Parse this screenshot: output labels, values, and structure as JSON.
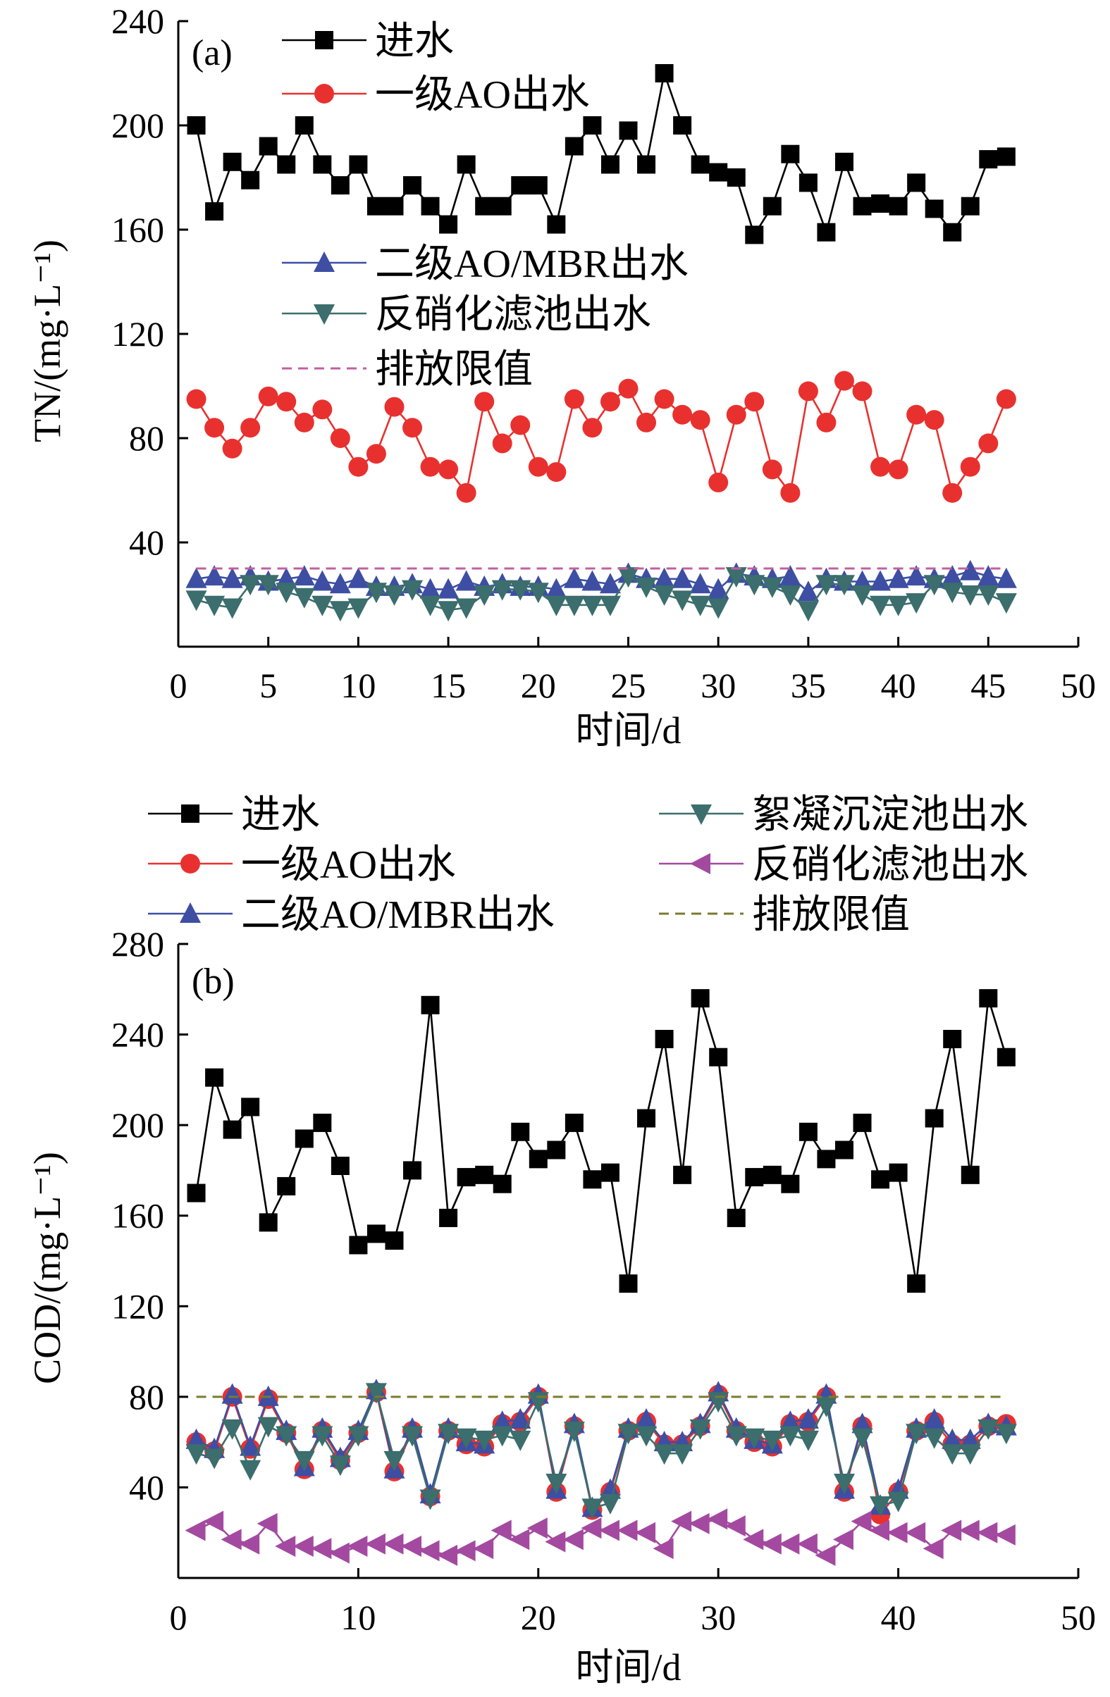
{
  "chart_data": [
    {
      "type": "line",
      "panel_label": "(a)",
      "xlabel": "时间/d",
      "ylabel": "TN/(mg·L⁻¹)",
      "xlim": [
        0,
        50
      ],
      "ylim": [
        0,
        240
      ],
      "x_ticks": [
        "0",
        "5",
        "10",
        "15",
        "20",
        "25",
        "30",
        "35",
        "40",
        "45",
        "50"
      ],
      "y_ticks": [
        "40",
        "80",
        "120",
        "160",
        "200",
        "240"
      ],
      "grid": false,
      "legend_position": "top-left (split: upper and middle)",
      "x": [
        1,
        2,
        3,
        4,
        5,
        6,
        7,
        8,
        9,
        10,
        11,
        12,
        13,
        14,
        15,
        16,
        17,
        18,
        19,
        20,
        21,
        22,
        23,
        24,
        25,
        26,
        27,
        28,
        29,
        30,
        31,
        32,
        33,
        34,
        35,
        36,
        37,
        38,
        39,
        40,
        41,
        42,
        43,
        44,
        45,
        46
      ],
      "series": [
        {
          "name": "进水",
          "color": "#000000",
          "marker": "square",
          "values": [
            200,
            167,
            186,
            179,
            192,
            185,
            200,
            185,
            177,
            185,
            169,
            169,
            177,
            169,
            162,
            185,
            169,
            169,
            177,
            177,
            162,
            192,
            200,
            185,
            198,
            185,
            220,
            200,
            185,
            182,
            180,
            158,
            169,
            189,
            178,
            159,
            186,
            169,
            170,
            169,
            178,
            168,
            159,
            169,
            187,
            188
          ]
        },
        {
          "name": "一级AO出水",
          "color": "#e8312f",
          "marker": "circle",
          "values": [
            95,
            84,
            76,
            84,
            96,
            94,
            86,
            91,
            80,
            69,
            74,
            92,
            84,
            69,
            68,
            59,
            94,
            78,
            85,
            69,
            67,
            95,
            84,
            94,
            99,
            86,
            95,
            89,
            87,
            63,
            89,
            94,
            68,
            59,
            98,
            86,
            102,
            98,
            69,
            68,
            89,
            87,
            59,
            69,
            78,
            95
          ]
        },
        {
          "name": "二级AO/MBR出水",
          "color": "#3d4ea3",
          "marker": "triangle-up",
          "values": [
            26,
            27,
            26,
            27,
            25,
            26,
            27,
            25,
            24,
            26,
            23,
            23,
            24,
            22,
            22,
            25,
            23,
            24,
            23,
            23,
            22,
            26,
            25,
            24,
            28,
            26,
            26,
            26,
            24,
            22,
            28,
            27,
            26,
            27,
            21,
            26,
            25,
            25,
            25,
            26,
            27,
            26,
            27,
            29,
            27,
            26
          ]
        },
        {
          "name": "反硝化滤池出水",
          "color": "#3b6e6c",
          "marker": "triangle-down",
          "values": [
            18,
            16,
            15,
            24,
            24,
            21,
            19,
            16,
            14,
            15,
            21,
            20,
            22,
            16,
            14,
            15,
            20,
            22,
            22,
            21,
            16,
            16,
            16,
            16,
            27,
            23,
            20,
            18,
            16,
            15,
            27,
            24,
            23,
            20,
            14,
            24,
            24,
            20,
            16,
            16,
            17,
            24,
            21,
            20,
            20,
            17
          ]
        },
        {
          "name": "排放限值",
          "color": "#c060a0",
          "dashed": true,
          "values_const": 30
        }
      ]
    },
    {
      "type": "line",
      "panel_label": "(b)",
      "xlabel": "时间/d",
      "ylabel": "COD/(mg·L⁻¹)",
      "xlim": [
        0,
        50
      ],
      "ylim": [
        0,
        280
      ],
      "x_ticks": [
        "0",
        "10",
        "20",
        "30",
        "40",
        "50"
      ],
      "y_ticks": [
        "40",
        "80",
        "120",
        "160",
        "200",
        "240",
        "280"
      ],
      "grid": false,
      "legend_position": "above plot, two columns",
      "x": [
        1,
        2,
        3,
        4,
        5,
        6,
        7,
        8,
        9,
        10,
        11,
        12,
        13,
        14,
        15,
        16,
        17,
        18,
        19,
        20,
        21,
        22,
        23,
        24,
        25,
        26,
        27,
        28,
        29,
        30,
        31,
        32,
        33,
        34,
        35,
        36,
        37,
        38,
        39,
        40,
        41,
        42,
        43,
        44,
        45,
        46
      ],
      "series": [
        {
          "name": "进水",
          "color": "#000000",
          "marker": "square",
          "values": [
            170,
            221,
            198,
            208,
            157,
            173,
            194,
            201,
            182,
            147,
            152,
            149,
            180,
            253,
            159,
            177,
            178,
            174,
            197,
            185,
            189,
            201,
            176,
            179,
            130,
            203,
            238,
            178,
            256,
            230,
            159,
            177,
            178,
            174,
            197,
            185,
            189,
            201,
            176,
            179,
            130,
            203,
            238,
            178,
            256,
            230
          ]
        },
        {
          "name": "一级AO出水",
          "color": "#e8312f",
          "marker": "circle",
          "values": [
            60,
            56,
            80,
            57,
            79,
            64,
            48,
            65,
            52,
            64,
            82,
            47,
            65,
            36,
            65,
            59,
            58,
            68,
            69,
            80,
            38,
            67,
            30,
            38,
            65,
            69,
            59,
            59,
            67,
            81,
            65,
            60,
            58,
            68,
            69,
            80,
            38,
            67,
            28,
            38,
            65,
            69,
            59,
            59,
            67,
            68
          ]
        },
        {
          "name": "二级AO/MBR出水",
          "color": "#3d4ea3",
          "marker": "triangle-up",
          "values": [
            61,
            57,
            81,
            58,
            80,
            65,
            49,
            66,
            53,
            65,
            83,
            48,
            66,
            37,
            66,
            60,
            59,
            69,
            70,
            81,
            39,
            68,
            31,
            39,
            66,
            70,
            60,
            60,
            68,
            82,
            66,
            61,
            59,
            69,
            70,
            81,
            39,
            68,
            32,
            39,
            66,
            70,
            61,
            61,
            68,
            67
          ]
        },
        {
          "name": "絮凝沉淀池出水",
          "color": "#3b6e6c",
          "marker": "triangle-down",
          "values": [
            55,
            53,
            66,
            48,
            67,
            63,
            52,
            63,
            50,
            63,
            82,
            52,
            63,
            35,
            64,
            62,
            61,
            63,
            61,
            78,
            42,
            65,
            31,
            33,
            64,
            63,
            55,
            55,
            66,
            78,
            63,
            62,
            61,
            63,
            61,
            76,
            42,
            62,
            32,
            34,
            64,
            62,
            55,
            55,
            66,
            64
          ]
        },
        {
          "name": "反硝化滤池出水",
          "color": "#a34aa0",
          "marker": "triangle-left",
          "values": [
            21,
            25,
            17,
            15,
            24,
            14,
            14,
            13,
            11,
            14,
            15,
            15,
            14,
            12,
            10,
            12,
            13,
            21,
            17,
            22,
            16,
            17,
            22,
            21,
            21,
            20,
            13,
            25,
            24,
            26,
            23,
            17,
            15,
            15,
            15,
            10,
            17,
            25,
            21,
            20,
            20,
            13,
            21,
            21,
            20,
            19
          ]
        },
        {
          "name": "排放限值",
          "color": "#7b7a2e",
          "dashed": true,
          "values_const": 80
        }
      ]
    }
  ]
}
